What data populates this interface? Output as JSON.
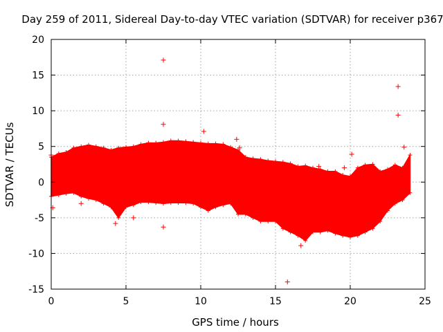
{
  "chart_data": {
    "type": "scatter",
    "title": "Day 259 of 2011, Sidereal Day-to-day VTEC variation (SDTVAR) for receiver p367",
    "xlabel": "GPS time / hours",
    "ylabel": "SDTVAR / TECUs",
    "xlim": [
      0,
      25
    ],
    "ylim": [
      -15,
      20
    ],
    "xticks": [
      0,
      5,
      10,
      15,
      20,
      25
    ],
    "yticks": [
      -15,
      -10,
      -5,
      0,
      5,
      10,
      15,
      20
    ],
    "grid": true,
    "marker": "+",
    "color": "#ff0000",
    "band_envelope": {
      "x": [
        0,
        0.5,
        1,
        1.5,
        2,
        2.5,
        3,
        3.5,
        4,
        4.5,
        5,
        5.5,
        6,
        6.5,
        7,
        7.5,
        8,
        8.5,
        9,
        9.5,
        10,
        10.5,
        11,
        11.5,
        12,
        12.5,
        13,
        13.5,
        14,
        14.5,
        15,
        15.5,
        16,
        16.5,
        17,
        17.5,
        18,
        18.5,
        19,
        19.5,
        20,
        20.5,
        21,
        21.5,
        22,
        22.5,
        23,
        23.5,
        24
      ],
      "upper": [
        3.5,
        4.0,
        4.2,
        4.8,
        5.0,
        5.2,
        5.0,
        4.8,
        4.5,
        4.8,
        4.9,
        5.0,
        5.3,
        5.5,
        5.5,
        5.6,
        5.8,
        5.8,
        5.7,
        5.6,
        5.5,
        5.4,
        5.4,
        5.3,
        4.9,
        4.5,
        3.5,
        3.3,
        3.2,
        3.0,
        2.9,
        2.8,
        2.6,
        2.2,
        2.3,
        2.0,
        1.8,
        1.5,
        1.5,
        1.0,
        0.8,
        2.0,
        2.4,
        2.5,
        1.5,
        1.8,
        2.4,
        2.0,
        3.8
      ],
      "lower": [
        -2.0,
        -1.8,
        -1.6,
        -1.5,
        -2.0,
        -2.3,
        -2.5,
        -3.0,
        -3.5,
        -5.0,
        -3.5,
        -3.2,
        -2.8,
        -2.8,
        -2.9,
        -3.0,
        -2.9,
        -2.9,
        -2.9,
        -3.0,
        -3.5,
        -4.0,
        -3.5,
        -3.2,
        -3.0,
        -4.5,
        -4.5,
        -5.0,
        -5.5,
        -5.5,
        -5.5,
        -6.5,
        -7.0,
        -7.5,
        -8.2,
        -7.0,
        -7.0,
        -6.8,
        -7.2,
        -7.5,
        -7.7,
        -7.5,
        -7.0,
        -6.5,
        -5.5,
        -4.0,
        -3.0,
        -2.5,
        -1.5
      ]
    },
    "outliers": {
      "x": [
        7.5,
        7.5,
        7.5,
        23.2,
        23.2,
        15.8,
        23.6,
        5.5,
        10.2,
        12.4,
        12.6,
        16.7,
        17.9,
        19.6,
        20.1,
        20.3,
        2.0,
        0.1,
        4.3,
        0.0
      ],
      "y": [
        17.1,
        8.1,
        -6.3,
        13.4,
        9.4,
        -14.0,
        4.9,
        -5.0,
        7.1,
        6.0,
        4.8,
        -8.9,
        2.2,
        2.0,
        3.9,
        -2.1,
        -3.0,
        -3.6,
        -5.8,
        3.8
      ]
    }
  }
}
